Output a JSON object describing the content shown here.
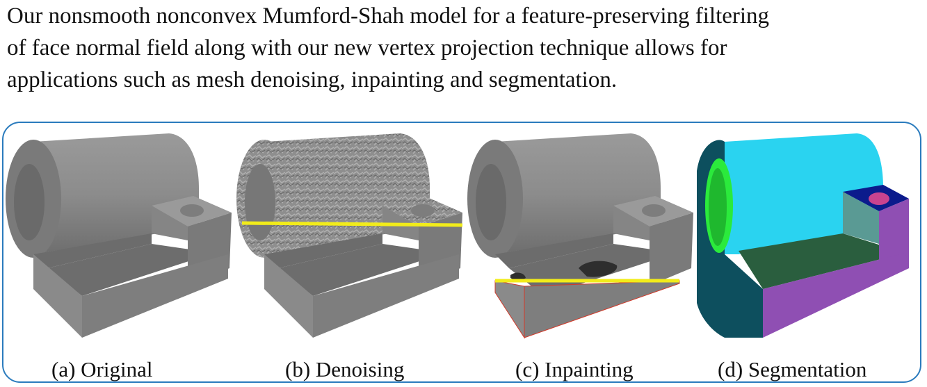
{
  "caption_lines": [
    "Our nonsmooth nonconvex Mumford-Shah model for a feature-preserving filtering",
    "of face normal field along with our new vertex projection technique allows for",
    "applications such as mesh denoising,  inpainting and segmentation."
  ],
  "panels": [
    {
      "label": "(a) Original"
    },
    {
      "label": "(b) Denoising"
    },
    {
      "label": "(c) Inpainting"
    },
    {
      "label": "(d) Segmentation"
    }
  ],
  "colors": {
    "frame": "#2a7bbd",
    "mesh_gray": "#8a8a8a",
    "highlight_line": "#f2ec1a",
    "seg_cyan": "#2ad3f0",
    "seg_green": "#2bea3c",
    "seg_darkteal": "#0d4f5e",
    "seg_darkgreen": "#2a5e3e",
    "seg_purple": "#8f4fb3",
    "seg_navy": "#0b1b8c",
    "seg_pink": "#c9438f"
  }
}
